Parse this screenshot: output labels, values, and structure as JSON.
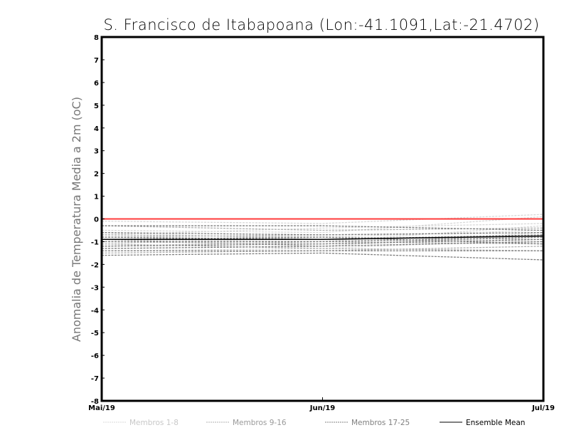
{
  "chart_data": {
    "type": "line",
    "title": "S. Francisco de Itabapoana (Lon:-41.1091,Lat:-21.4702)",
    "ylabel": "Anomalia de Temperatura Media a 2m (oC)",
    "xlabel": "",
    "x": [
      "Mai/19",
      "Jun/19",
      "Jul/19"
    ],
    "ylim": [
      -8,
      8
    ],
    "yticks": [
      "-8",
      "-7",
      "-6",
      "-5",
      "-4",
      "-3",
      "-2",
      "-1",
      "0",
      "1",
      "2",
      "3",
      "4",
      "5",
      "6",
      "7",
      "8"
    ],
    "reference_line": {
      "value": 0,
      "color": "#ff3b3b"
    },
    "groups": [
      {
        "name": "Membros 1-8",
        "color": "#d8d8d8",
        "style": "dashed",
        "members": [
          [
            -0.1,
            -0.2,
            0.2
          ],
          [
            -0.5,
            -0.6,
            0.1
          ],
          [
            -0.7,
            -0.4,
            -0.2
          ],
          [
            -0.9,
            -1.0,
            -0.3
          ],
          [
            -1.1,
            -0.8,
            -0.5
          ],
          [
            -1.3,
            -1.2,
            -0.6
          ],
          [
            -0.6,
            -0.9,
            -1.0
          ],
          [
            -1.4,
            -1.3,
            -0.9
          ]
        ]
      },
      {
        "name": "Membros 9-16",
        "color": "#b0b0b0",
        "style": "dashed",
        "members": [
          [
            -0.3,
            -0.5,
            -0.4
          ],
          [
            -0.8,
            -0.7,
            -0.6
          ],
          [
            -1.0,
            -1.1,
            -0.8
          ],
          [
            -1.2,
            -1.0,
            -1.1
          ],
          [
            -0.7,
            -0.8,
            -0.9
          ],
          [
            -1.5,
            -1.4,
            -1.2
          ],
          [
            -0.9,
            -1.2,
            -1.0
          ],
          [
            -1.1,
            -1.3,
            -1.4
          ]
        ]
      },
      {
        "name": "Membros 17-25",
        "color": "#808080",
        "style": "dashed",
        "members": [
          [
            -0.3,
            -0.3,
            -0.5
          ],
          [
            -0.6,
            -0.7,
            -0.6
          ],
          [
            -0.8,
            -0.9,
            -0.7
          ],
          [
            -1.0,
            -1.0,
            -0.8
          ],
          [
            -1.2,
            -1.1,
            -0.9
          ],
          [
            -1.4,
            -1.4,
            -1.4
          ],
          [
            -1.6,
            -1.5,
            -1.8
          ],
          [
            -0.9,
            -0.8,
            -1.1
          ],
          [
            -1.3,
            -1.2,
            -1.0
          ]
        ]
      }
    ],
    "ensemble_mean": {
      "name": "Ensemble Mean",
      "color": "#000000",
      "values": [
        -0.9,
        -0.9,
        -0.75
      ]
    },
    "legend": {
      "placement": "bottom",
      "entries": [
        "Membros 1-8",
        "Membros 9-16",
        "Membros 17-25",
        "Ensemble Mean"
      ]
    }
  }
}
